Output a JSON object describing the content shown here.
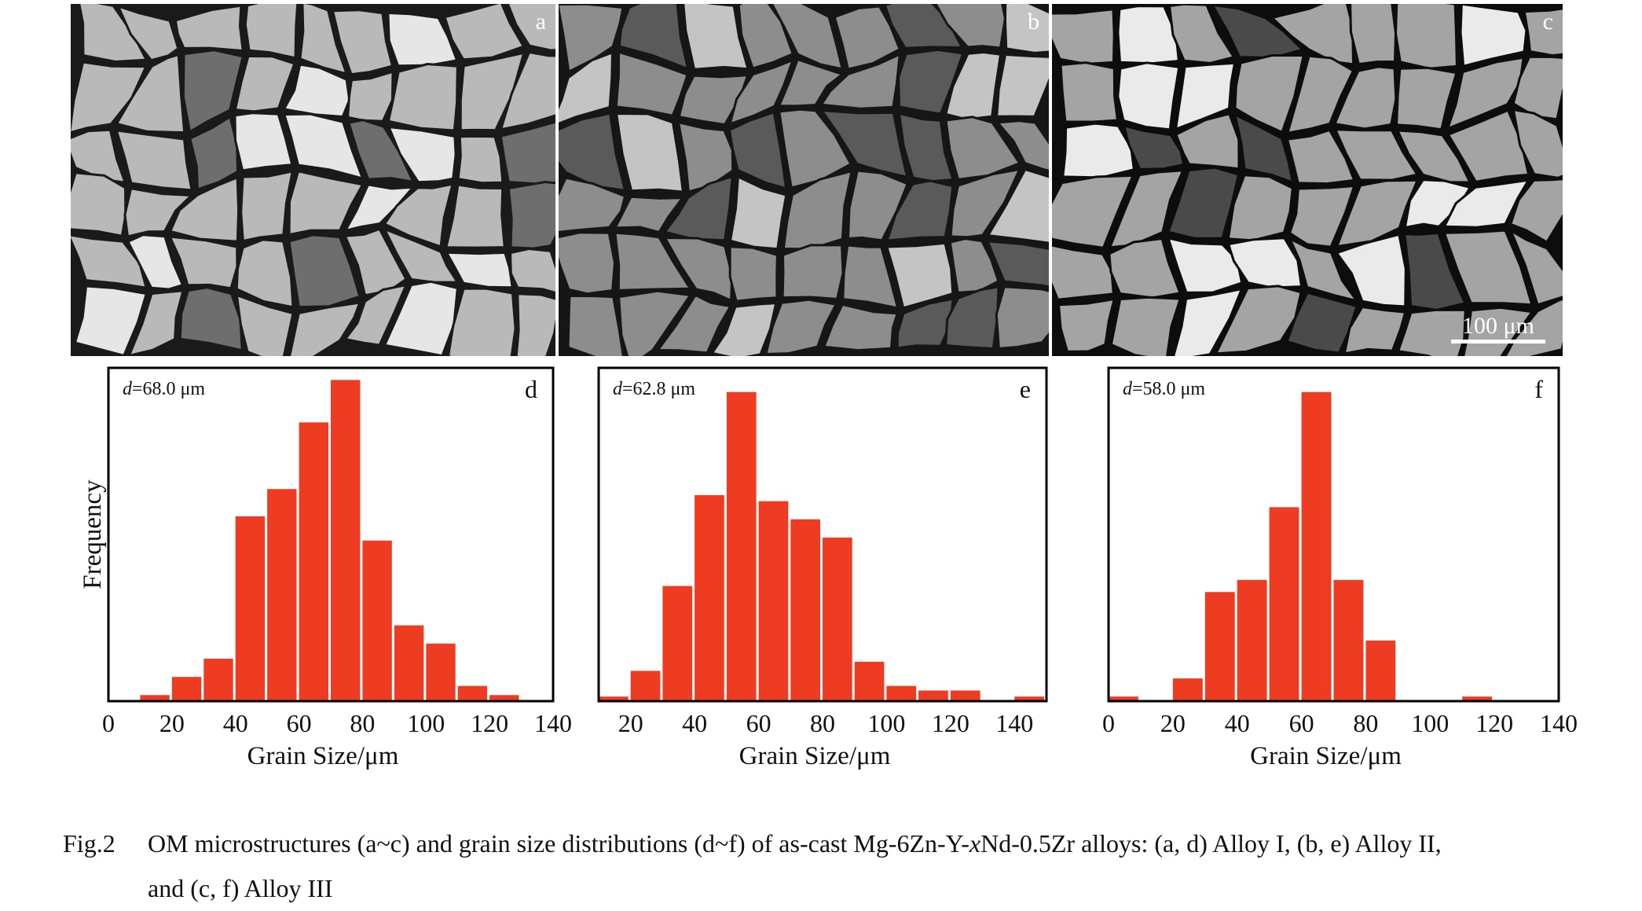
{
  "micrographs": [
    {
      "label": "a",
      "tone": "#b9b9b9",
      "boundary": "#1a1a1a",
      "dark": "#6e6e6e",
      "light": "#e6e6e6"
    },
    {
      "label": "b",
      "tone": "#8d8d8d",
      "boundary": "#161616",
      "dark": "#5a5a5a",
      "light": "#c4c4c4"
    },
    {
      "label": "c",
      "tone": "#a4a4a4",
      "boundary": "#0d0d0d",
      "dark": "#4a4a4a",
      "light": "#eaeaea"
    }
  ],
  "scale_bar": "100 μm",
  "bar_color": "#ee3c22",
  "chart_data": [
    {
      "type": "bar",
      "panel": "d",
      "annotation_var": "d",
      "annotation_value": "=68.0 μm",
      "ylabel": "Frequency",
      "xlabel": "Grain Size/μm",
      "xticks": [
        "0",
        "20",
        "40",
        "60",
        "80",
        "100",
        "120",
        "140"
      ],
      "xlim": [
        0,
        140
      ],
      "bin_width": 10,
      "bin_starts": [
        10,
        20,
        30,
        40,
        50,
        60,
        70,
        80,
        90,
        100,
        110,
        120
      ],
      "values": [
        2,
        8,
        14,
        61,
        70,
        92,
        106,
        53,
        25,
        19,
        5,
        2
      ]
    },
    {
      "type": "bar",
      "panel": "e",
      "annotation_var": "d",
      "annotation_value": "=62.8 μm",
      "ylabel": "",
      "xlabel": "Grain Size/μm",
      "xticks": [
        "20",
        "40",
        "60",
        "80",
        "100",
        "120",
        "140"
      ],
      "xlim": [
        10,
        150
      ],
      "bin_width": 10,
      "bin_starts": [
        10,
        20,
        30,
        40,
        50,
        60,
        70,
        80,
        90,
        100,
        110,
        120,
        130,
        140
      ],
      "values": [
        1.5,
        10,
        38,
        68,
        102,
        66,
        60,
        54,
        13,
        5,
        3.5,
        3.5,
        0,
        1.5
      ]
    },
    {
      "type": "bar",
      "panel": "f",
      "annotation_var": "d",
      "annotation_value": "=58.0 μm",
      "ylabel": "",
      "xlabel": "Grain Size/μm",
      "xticks": [
        "0",
        "20",
        "40",
        "60",
        "80",
        "100",
        "120",
        "140"
      ],
      "xlim": [
        0,
        140
      ],
      "bin_width": 10,
      "bin_starts": [
        0,
        10,
        20,
        30,
        40,
        50,
        60,
        70,
        80,
        90,
        100,
        110,
        120,
        130
      ],
      "values": [
        1.5,
        0,
        7.5,
        36,
        40,
        64,
        102,
        40,
        20,
        0,
        0,
        1.5,
        0,
        0
      ]
    }
  ],
  "caption": {
    "fig_label": "Fig.2",
    "line1_a": "OM microstructures (a~c) and grain size distributions (d~f) of as-cast Mg-6Zn-Y-",
    "line1_var": "x",
    "line1_b": "Nd-0.5Zr alloys: (a, d) Alloy I, (b, e) Alloy II,",
    "line2": "and (c, f) Alloy III"
  }
}
